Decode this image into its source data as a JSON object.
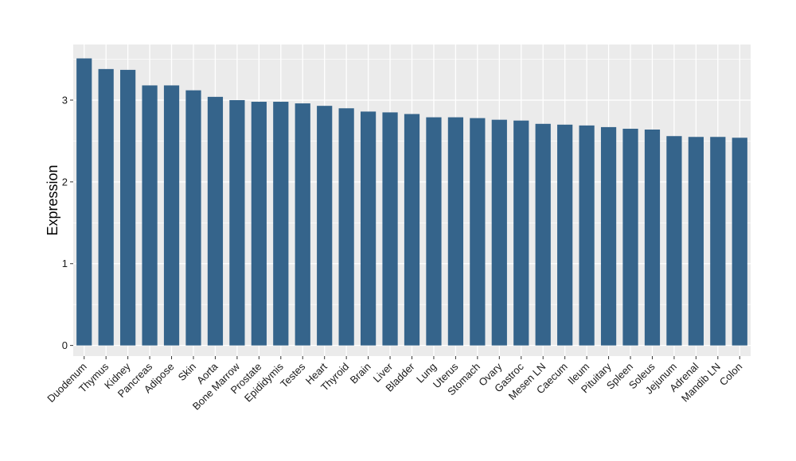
{
  "chart_data": {
    "type": "bar",
    "title": "",
    "xlabel": "",
    "ylabel": "Expression",
    "ylim": [
      -0.13,
      3.68
    ],
    "yticks": [
      0,
      1,
      2,
      3
    ],
    "grid": true,
    "colors": {
      "bar": "#35648b",
      "panel": "#ebebeb",
      "grid": "#ffffff"
    },
    "categories": [
      "Duodenum",
      "Thymus",
      "Kidney",
      "Pancreas",
      "Adipose",
      "Skin",
      "Aorta",
      "Bone Marrow",
      "Prostate",
      "Epididymis",
      "Testes",
      "Heart",
      "Thyroid",
      "Brain",
      "Liver",
      "Bladder",
      "Lung",
      "Uterus",
      "Stomach",
      "Ovary",
      "Gastroc",
      "Mesen LN",
      "Caecum",
      "Ileum",
      "Pituitary",
      "Spleen",
      "Soleus",
      "Jejunum",
      "Adrenal",
      "Mandib LN",
      "Colon"
    ],
    "values": [
      3.51,
      3.38,
      3.37,
      3.18,
      3.18,
      3.12,
      3.04,
      3.0,
      2.98,
      2.98,
      2.96,
      2.93,
      2.9,
      2.86,
      2.85,
      2.83,
      2.79,
      2.79,
      2.78,
      2.76,
      2.75,
      2.71,
      2.7,
      2.69,
      2.67,
      2.65,
      2.64,
      2.56,
      2.55,
      2.55,
      2.54
    ]
  }
}
